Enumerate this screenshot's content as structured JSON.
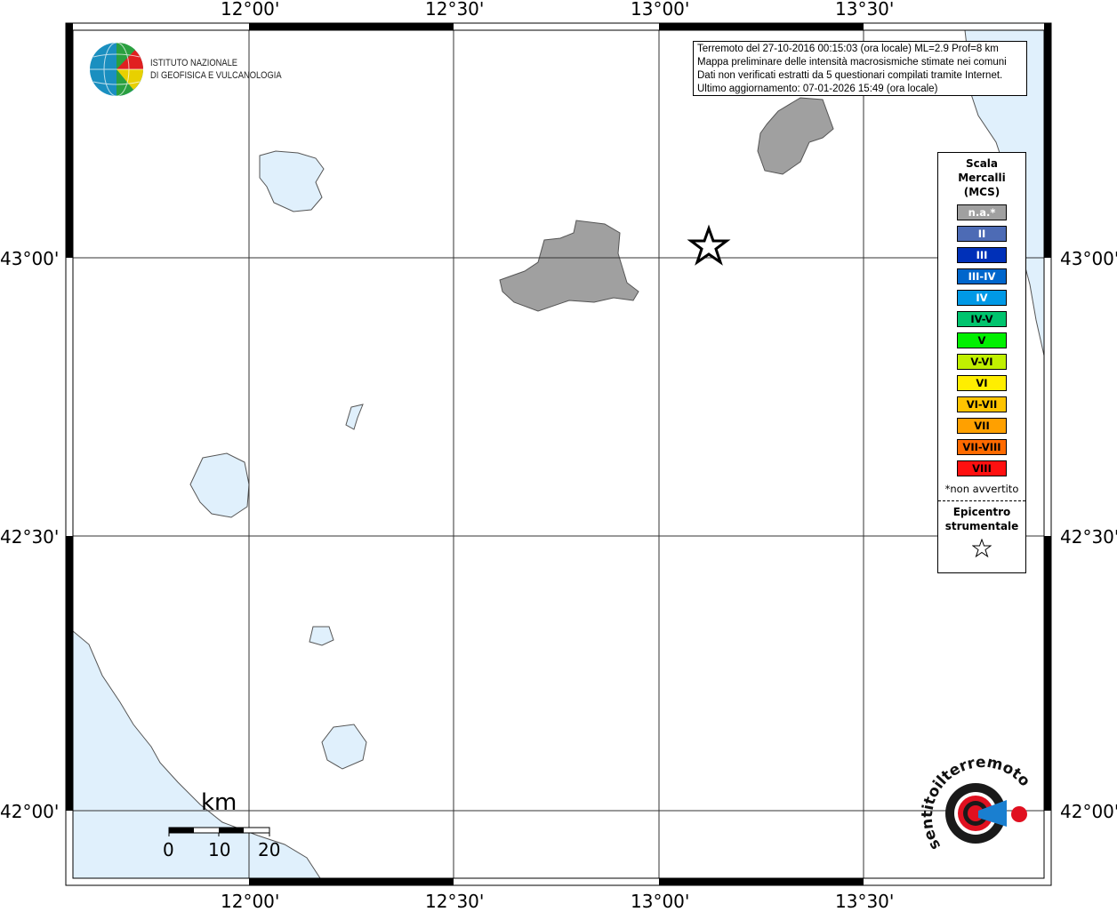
{
  "axes": {
    "lon_ticks": [
      "12°00'",
      "12°30'",
      "13°00'",
      "13°30'"
    ],
    "lat_ticks": [
      "43°00'",
      "42°30'",
      "42°00'"
    ]
  },
  "info_box": {
    "lines": [
      "Terremoto del 27-10-2016 00:15:03 (ora locale) ML=2.9 Prof=8 km",
      "Mappa preliminare delle intensità macrosismiche stimate nei comuni",
      "Dati non verificati estratti da 5 questionari compilati tramite Internet.",
      "Ultimo aggiornamento: 07-01-2026 15:49 (ora locale)"
    ]
  },
  "logo_ingv": {
    "line1": "ISTITUTO NAZIONALE",
    "line2": "DI GEOFISICA E VULCANOLOGIA"
  },
  "logo_hsit": {
    "text": "www.haisentitoilterremoto.it"
  },
  "legend": {
    "title": [
      "Scala",
      "Mercalli",
      "(MCS)"
    ],
    "classes": [
      {
        "label": "n.a.*",
        "color": "#a0a0a0",
        "text": "#ffffff"
      },
      {
        "label": "II",
        "color": "#4d6bb5",
        "text": "#ffffff"
      },
      {
        "label": "III",
        "color": "#0030b8",
        "text": "#ffffff"
      },
      {
        "label": "III-IV",
        "color": "#0066cc",
        "text": "#ffffff"
      },
      {
        "label": "IV",
        "color": "#0099e6",
        "text": "#ffffff"
      },
      {
        "label": "IV-V",
        "color": "#00c46e",
        "text": "#000000"
      },
      {
        "label": "V",
        "color": "#00f000",
        "text": "#000000"
      },
      {
        "label": "V-VI",
        "color": "#c0f000",
        "text": "#000000"
      },
      {
        "label": "VI",
        "color": "#ffee00",
        "text": "#000000"
      },
      {
        "label": "VI-VII",
        "color": "#ffc400",
        "text": "#000000"
      },
      {
        "label": "VII",
        "color": "#ffa000",
        "text": "#000000"
      },
      {
        "label": "VII-VIII",
        "color": "#ff6a00",
        "text": "#000000"
      },
      {
        "label": "VIII",
        "color": "#ff1010",
        "text": "#000000"
      }
    ],
    "note": "*non avvertito",
    "epicenter_label": [
      "Epicentro",
      "strumentale"
    ],
    "epicenter_icon": "star-icon"
  },
  "scale_bar": {
    "unit": "km",
    "labels": [
      "0",
      "10",
      "20"
    ]
  },
  "colors": {
    "water": "#e0f0fc",
    "na_area": "#a0a0a0"
  }
}
